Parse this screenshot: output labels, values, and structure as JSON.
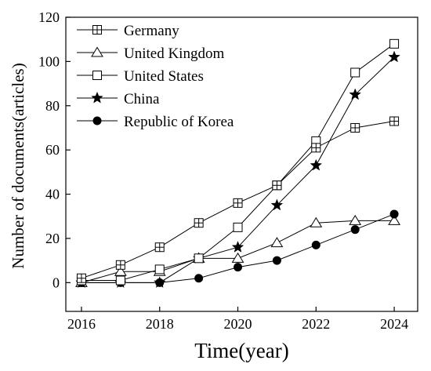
{
  "chart_data": {
    "type": "line",
    "title": "",
    "xlabel": "Time(year)",
    "ylabel": "Number of documents(articles)",
    "xlim": [
      2015.6,
      2024.6
    ],
    "ylim": [
      -13,
      120
    ],
    "xticks": [
      2016,
      2018,
      2020,
      2022,
      2024
    ],
    "yticks": [
      0,
      20,
      40,
      60,
      80,
      100,
      120
    ],
    "x": [
      2016,
      2017,
      2018,
      2019,
      2020,
      2021,
      2022,
      2023,
      2024
    ],
    "legend_position": "top-left",
    "grid": false,
    "series": [
      {
        "name": "Germany",
        "marker": "square-plus",
        "values": [
          2,
          8,
          16,
          27,
          36,
          44,
          61,
          70,
          73
        ]
      },
      {
        "name": "United Kingdom",
        "marker": "triangle-open",
        "values": [
          0,
          5,
          5,
          11,
          11,
          18,
          27,
          28,
          28
        ]
      },
      {
        "name": "United States",
        "marker": "square-open",
        "values": [
          1,
          1,
          6,
          11,
          25,
          44,
          64,
          95,
          108
        ]
      },
      {
        "name": "China",
        "marker": "star-filled",
        "values": [
          0,
          0,
          0,
          11,
          16,
          35,
          53,
          85,
          102
        ]
      },
      {
        "name": "Republic of Korea",
        "marker": "circle-filled",
        "values": [
          0,
          0,
          0,
          2,
          7,
          10,
          17,
          24,
          31
        ]
      }
    ]
  }
}
